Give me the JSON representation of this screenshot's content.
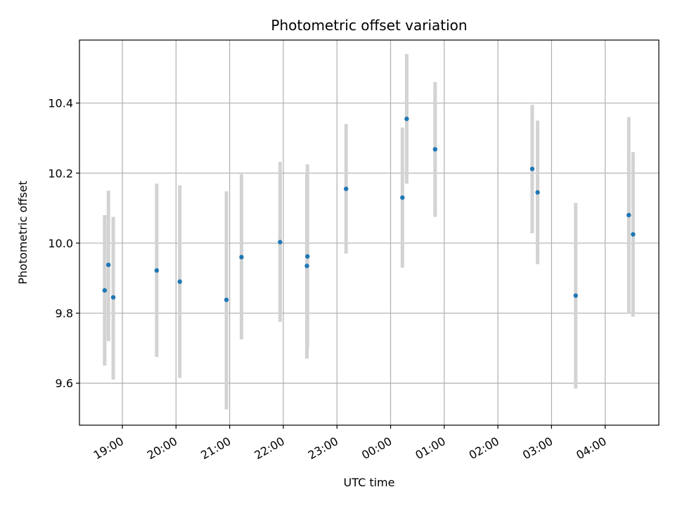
{
  "chart_data": {
    "type": "scatter",
    "title": "Photometric offset variation",
    "xlabel": "UTC time",
    "ylabel": "Photometric offset",
    "x_unit": "hours after 18:00 UTC",
    "x_ticks": [
      {
        "value": 1,
        "label": "19:00"
      },
      {
        "value": 2,
        "label": "20:00"
      },
      {
        "value": 3,
        "label": "21:00"
      },
      {
        "value": 4,
        "label": "22:00"
      },
      {
        "value": 5,
        "label": "23:00"
      },
      {
        "value": 6,
        "label": "00:00"
      },
      {
        "value": 7,
        "label": "01:00"
      },
      {
        "value": 8,
        "label": "02:00"
      },
      {
        "value": 9,
        "label": "03:00"
      },
      {
        "value": 10,
        "label": "04:00"
      }
    ],
    "y_ticks": [
      {
        "value": 9.6,
        "label": "9.6"
      },
      {
        "value": 9.8,
        "label": "9.8"
      },
      {
        "value": 10.0,
        "label": "10.0"
      },
      {
        "value": 10.2,
        "label": "10.2"
      },
      {
        "value": 10.4,
        "label": "10.4"
      }
    ],
    "xlim": [
      0.2,
      11.0
    ],
    "ylim": [
      9.48,
      10.58
    ],
    "grid": true,
    "marker_color": "#1f77b4",
    "errorbar_color": "#d3d3d3",
    "points": [
      {
        "x": 0.67,
        "y": 9.865,
        "low": 9.65,
        "high": 10.08
      },
      {
        "x": 0.74,
        "y": 9.938,
        "low": 9.72,
        "high": 10.15
      },
      {
        "x": 0.83,
        "y": 9.845,
        "low": 9.61,
        "high": 10.075
      },
      {
        "x": 1.64,
        "y": 9.922,
        "low": 9.675,
        "high": 10.17
      },
      {
        "x": 2.07,
        "y": 9.89,
        "low": 9.615,
        "high": 10.165
      },
      {
        "x": 2.94,
        "y": 9.838,
        "low": 9.525,
        "high": 10.148
      },
      {
        "x": 3.22,
        "y": 9.96,
        "low": 9.725,
        "high": 10.197
      },
      {
        "x": 3.94,
        "y": 10.003,
        "low": 9.775,
        "high": 10.232
      },
      {
        "x": 4.44,
        "y": 9.935,
        "low": 9.67,
        "high": 10.2
      },
      {
        "x": 4.45,
        "y": 9.962,
        "low": 9.7,
        "high": 10.225
      },
      {
        "x": 5.17,
        "y": 10.155,
        "low": 9.97,
        "high": 10.34
      },
      {
        "x": 6.22,
        "y": 10.13,
        "low": 9.93,
        "high": 10.33
      },
      {
        "x": 6.3,
        "y": 10.355,
        "low": 10.17,
        "high": 10.54
      },
      {
        "x": 6.83,
        "y": 10.268,
        "low": 10.075,
        "high": 10.46
      },
      {
        "x": 8.64,
        "y": 10.212,
        "low": 10.028,
        "high": 10.395
      },
      {
        "x": 8.74,
        "y": 10.145,
        "low": 9.94,
        "high": 10.35
      },
      {
        "x": 9.45,
        "y": 9.85,
        "low": 9.585,
        "high": 10.115
      },
      {
        "x": 10.44,
        "y": 10.08,
        "low": 9.8,
        "high": 10.36
      },
      {
        "x": 10.52,
        "y": 10.025,
        "low": 9.79,
        "high": 10.26
      }
    ]
  }
}
